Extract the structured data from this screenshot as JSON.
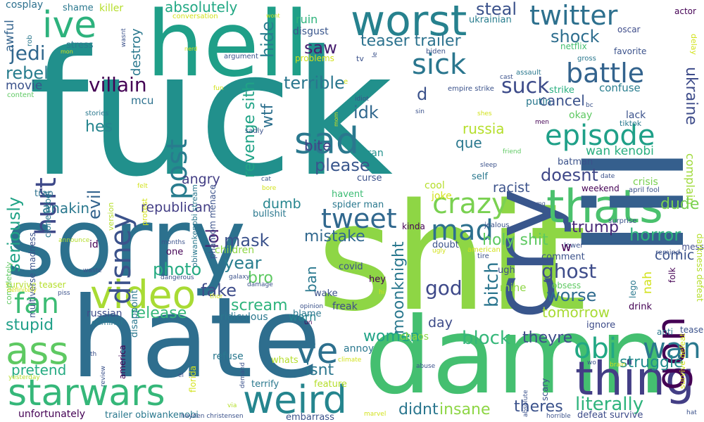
{
  "words": [
    {
      "text": "fuck",
      "color": "#21908c"
    },
    {
      "text": "shit",
      "color": "#8ed645"
    },
    {
      "text": "sorry",
      "color": "#2c718e"
    },
    {
      "text": "hate",
      "color": "#2e6e8e"
    },
    {
      "text": "damn",
      "color": "#44bf70"
    },
    {
      "text": "hell",
      "color": "#1f9f88"
    },
    {
      "text": "cry",
      "color": "#39568c"
    },
    {
      "text": "worst",
      "color": "#26818e"
    },
    {
      "text": "thats",
      "color": "#4ac16d"
    },
    {
      "text": "thing",
      "color": "#433e85"
    },
    {
      "text": "lil",
      "color": "#355f8d"
    },
    {
      "text": "ive",
      "color": "#2db27d"
    },
    {
      "text": "gon",
      "color": "#440154"
    },
    {
      "text": "sad",
      "color": "#2a788e"
    },
    {
      "text": "video",
      "color": "#a8db34"
    },
    {
      "text": "starwars",
      "color": "#35b779"
    },
    {
      "text": "weird",
      "color": "#25858e"
    },
    {
      "text": "ass",
      "color": "#5ec962"
    },
    {
      "text": "ve",
      "color": "#2d708e"
    },
    {
      "text": "obi",
      "color": "#22a884"
    },
    {
      "text": "wan",
      "color": "#2a788e"
    },
    {
      "text": "episode",
      "color": "#1fa088"
    },
    {
      "text": "twitter",
      "color": "#2d708e"
    },
    {
      "text": "battle",
      "color": "#33638d"
    },
    {
      "text": "sick",
      "color": "#2a768e"
    },
    {
      "text": "crazy",
      "color": "#7ad151"
    },
    {
      "text": "tweet",
      "color": "#31688e"
    },
    {
      "text": "mad",
      "color": "#2d708e"
    },
    {
      "text": "disney",
      "color": "#3b528b"
    },
    {
      "text": "post",
      "color": "#287c8e"
    },
    {
      "text": "hurt",
      "color": "#3e4989"
    },
    {
      "text": "fan",
      "color": "#3dbc74"
    },
    {
      "text": "suck",
      "color": "#3e4c8a"
    },
    {
      "text": "villain",
      "color": "#440154"
    },
    {
      "text": "jedi",
      "color": "#31688e"
    },
    {
      "text": "rebel",
      "color": "#287d8e"
    },
    {
      "text": "shock",
      "color": "#2e6e8e"
    },
    {
      "text": "steal",
      "color": "#3b528b"
    },
    {
      "text": "absolutely",
      "color": "#22a884"
    },
    {
      "text": "teaser trailer",
      "color": "#2c728e"
    },
    {
      "text": "saw",
      "color": "#481f70"
    },
    {
      "text": "terrible",
      "color": "#2a768e"
    },
    {
      "text": "hide",
      "color": "#287d8e"
    },
    {
      "text": "wtf",
      "color": "#2d708e"
    },
    {
      "text": "revenge sith",
      "color": "#20a386"
    },
    {
      "text": "idk",
      "color": "#31688e"
    },
    {
      "text": "bite",
      "color": "#414487"
    },
    {
      "text": "please",
      "color": "#39568c"
    },
    {
      "text": "russia",
      "color": "#b5de2b"
    },
    {
      "text": "que",
      "color": "#2a788e"
    },
    {
      "text": "d",
      "color": "#3b528b"
    },
    {
      "text": "cancel",
      "color": "#3b528b"
    },
    {
      "text": "ukraine",
      "color": "#3e4c8a"
    },
    {
      "text": "doesnt",
      "color": "#3f4788"
    },
    {
      "text": "wan kenobi",
      "color": "#29af7f"
    },
    {
      "text": "complain",
      "color": "#9fda3a"
    },
    {
      "text": "horror",
      "color": "#2db27d"
    },
    {
      "text": "mistake",
      "color": "#31688e"
    },
    {
      "text": "mask",
      "color": "#3b528b"
    },
    {
      "text": "lol",
      "color": "#481f70"
    },
    {
      "text": "year",
      "color": "#287d8e"
    },
    {
      "text": "photo",
      "color": "#25ab82"
    },
    {
      "text": "fake",
      "color": "#3e4c8a"
    },
    {
      "text": "scream",
      "color": "#2eb37c"
    },
    {
      "text": "release",
      "color": "#35b779"
    },
    {
      "text": "ghost",
      "color": "#3e4c8a"
    },
    {
      "text": "worse",
      "color": "#2f6b8e"
    },
    {
      "text": "god",
      "color": "#3e4989"
    },
    {
      "text": "bitch",
      "color": "#2b758e"
    },
    {
      "text": "block",
      "color": "#35b779"
    },
    {
      "text": "women",
      "color": "#20a386"
    },
    {
      "text": "theyre",
      "color": "#3e4c8a"
    },
    {
      "text": "literally",
      "color": "#2eb37c"
    },
    {
      "text": "struggle",
      "color": "#228c8d"
    },
    {
      "text": "theres",
      "color": "#3b528b"
    },
    {
      "text": "insane",
      "color": "#8ed645"
    },
    {
      "text": "didnt",
      "color": "#2a768e"
    },
    {
      "text": "isnt",
      "color": "#2a768e"
    },
    {
      "text": "stupid",
      "color": "#1f9f88"
    },
    {
      "text": "pretend",
      "color": "#25ab82"
    },
    {
      "text": "anakin",
      "color": "#2a788e"
    },
    {
      "text": "seriously",
      "color": "#20a386"
    },
    {
      "text": "evil",
      "color": "#33638d"
    },
    {
      "text": "hes",
      "color": "#25858e"
    },
    {
      "text": "republican",
      "color": "#433e85"
    },
    {
      "text": "angry",
      "color": "#433e85"
    },
    {
      "text": "dumb",
      "color": "#25858e"
    },
    {
      "text": "trump",
      "color": "#482878"
    },
    {
      "text": "holy shit",
      "color": "#5ec962"
    },
    {
      "text": "dude",
      "color": "#7ad151"
    },
    {
      "text": "comic",
      "color": "#3b528b"
    },
    {
      "text": "racist",
      "color": "#3b528b"
    },
    {
      "text": "moonknight",
      "color": "#2a788e"
    },
    {
      "text": "ban",
      "color": "#2a788e"
    },
    {
      "text": "nah",
      "color": "#d2e21b"
    },
    {
      "text": "mine",
      "color": "#8ed645"
    },
    {
      "text": "tomorrow",
      "color": "#a8db34"
    },
    {
      "text": "day",
      "color": "#3e4c8a"
    },
    {
      "text": "warn",
      "color": "#25858e"
    },
    {
      "text": "bro",
      "color": "#5ec962"
    },
    {
      "text": "movie",
      "color": "#3b528b"
    },
    {
      "text": "destroy",
      "color": "#2a788e"
    },
    {
      "text": "mcu",
      "color": "#2c718e"
    },
    {
      "text": "awful",
      "color": "#33638d"
    },
    {
      "text": "cosplay",
      "color": "#2d708e"
    },
    {
      "text": "shame",
      "color": "#2a788e"
    },
    {
      "text": "killer",
      "color": "#b5de2b"
    },
    {
      "text": "stress",
      "color": "#2a788e"
    },
    {
      "text": "ruin",
      "color": "#2eb37c"
    },
    {
      "text": "disgust",
      "color": "#39568c"
    },
    {
      "text": "problems",
      "color": "#d2e21b"
    },
    {
      "text": "ukrainian",
      "color": "#287d8e"
    },
    {
      "text": "oscar",
      "color": "#3e4c8a"
    },
    {
      "text": "actor",
      "color": "#440154"
    },
    {
      "text": "netflix",
      "color": "#44bf70"
    },
    {
      "text": "favorite",
      "color": "#3b528b"
    },
    {
      "text": "confuse",
      "color": "#287d8e"
    },
    {
      "text": "strike",
      "color": "#29af7f"
    },
    {
      "text": "okay",
      "color": "#5ec962"
    },
    {
      "text": "putin",
      "color": "#2a788e"
    },
    {
      "text": "lack",
      "color": "#3b528b"
    },
    {
      "text": "tiktok",
      "color": "#2a788e"
    },
    {
      "text": "crisis",
      "color": "#7ad151"
    },
    {
      "text": "weekend",
      "color": "#440154"
    },
    {
      "text": "batman",
      "color": "#3b528b"
    },
    {
      "text": "self",
      "color": "#2a788e"
    },
    {
      "text": "cool",
      "color": "#b5de2b"
    },
    {
      "text": "joke",
      "color": "#d2e21b"
    },
    {
      "text": "kinda",
      "color": "#440154"
    },
    {
      "text": "havent",
      "color": "#3dbc74"
    },
    {
      "text": "spider man",
      "color": "#2a788e"
    },
    {
      "text": "bullshit",
      "color": "#2a788e"
    },
    {
      "text": "curse",
      "color": "#3b528b"
    },
    {
      "text": "tran",
      "color": "#21908c"
    },
    {
      "text": "trap",
      "color": "#2d708e"
    },
    {
      "text": "id",
      "color": "#440154"
    },
    {
      "text": "children",
      "color": "#8ed645"
    },
    {
      "text": "one",
      "color": "#440154"
    },
    {
      "text": "doubt",
      "color": "#3b528b"
    },
    {
      "text": "ugh",
      "color": "#3e4c8a"
    },
    {
      "text": "comment",
      "color": "#3b528b"
    },
    {
      "text": "obsess",
      "color": "#5ec962"
    },
    {
      "text": "drink",
      "color": "#440154"
    },
    {
      "text": "ignore",
      "color": "#3e4c8a"
    },
    {
      "text": "lego",
      "color": "#2a788e"
    },
    {
      "text": "folk",
      "color": "#440154"
    },
    {
      "text": "anti",
      "color": "#2a788e"
    },
    {
      "text": "tease",
      "color": "#3b528b"
    },
    {
      "text": "mess",
      "color": "#3e4c8a"
    },
    {
      "text": "darkness defeat",
      "color": "#b5de2b"
    },
    {
      "text": "survive defeat",
      "color": "#d2e21b"
    },
    {
      "text": "covid",
      "color": "#3b528b"
    },
    {
      "text": "hey",
      "color": "#440154"
    },
    {
      "text": "wake",
      "color": "#3b528b"
    },
    {
      "text": "freak",
      "color": "#3e4c8a"
    },
    {
      "text": "blame",
      "color": "#2a788e"
    },
    {
      "text": "chaos",
      "color": "#8ed645"
    },
    {
      "text": "annoy",
      "color": "#2a788e"
    },
    {
      "text": "refuse",
      "color": "#2a788e"
    },
    {
      "text": "whats",
      "color": "#b5de2b"
    },
    {
      "text": "feature",
      "color": "#b5de2b"
    },
    {
      "text": "terrify",
      "color": "#2a788e"
    },
    {
      "text": "embarrass",
      "color": "#3b528b"
    },
    {
      "text": "ridiculous",
      "color": "#2a788e"
    },
    {
      "text": "survive teaser",
      "color": "#b5de2b"
    },
    {
      "text": "russian",
      "color": "#3e4c8a"
    },
    {
      "text": "criminal",
      "color": "#2a788e"
    },
    {
      "text": "america",
      "color": "#440154"
    },
    {
      "text": "unfortunately",
      "color": "#440154"
    },
    {
      "text": "trailer obiwankenobi",
      "color": "#2a788e"
    },
    {
      "text": "florida",
      "color": "#d2e21b"
    },
    {
      "text": "scary",
      "color": "#3b528b"
    },
    {
      "text": "defeat survive",
      "color": "#3e4c8a"
    },
    {
      "text": "multiverse madness",
      "color": "#3b528b"
    },
    {
      "text": "clone rebel",
      "color": "#2a788e"
    },
    {
      "text": "phantom menace",
      "color": "#3b528b"
    },
    {
      "text": "obiwankenobi stream",
      "color": "#2a788e"
    },
    {
      "text": "disappoint",
      "color": "#2a788e"
    },
    {
      "text": "protest",
      "color": "#d2e21b"
    },
    {
      "text": "version",
      "color": "#b5de2b"
    },
    {
      "text": "completely",
      "color": "#5ec962"
    },
    {
      "text": "content",
      "color": "#5ec962"
    },
    {
      "text": "stories",
      "color": "#2a788e"
    },
    {
      "text": "sadly",
      "color": "#3b528b"
    },
    {
      "text": "argument",
      "color": "#3b528b"
    },
    {
      "text": "conversation",
      "color": "#d2e21b"
    },
    {
      "text": "wasnt",
      "color": "#3b528b"
    },
    {
      "text": "rob",
      "color": "#2a788e"
    },
    {
      "text": "delay",
      "color": "#d2e21b"
    },
    {
      "text": "gross",
      "color": "#2a788e"
    },
    {
      "text": "biden",
      "color": "#3b528b"
    },
    {
      "text": "assault",
      "color": "#2a788e"
    },
    {
      "text": "empire strike",
      "color": "#3b528b"
    },
    {
      "text": "idiot",
      "color": "#3b528b"
    },
    {
      "text": "jealous",
      "color": "#3b528b"
    },
    {
      "text": "american",
      "color": "#d2e21b"
    },
    {
      "text": "tire",
      "color": "#3b528b"
    },
    {
      "text": "lower",
      "color": "#3b528b"
    },
    {
      "text": "remind",
      "color": "#3b528b"
    },
    {
      "text": "surprise",
      "color": "#3b528b"
    },
    {
      "text": "april fool",
      "color": "#3b528b"
    },
    {
      "text": "date",
      "color": "#3b528b"
    },
    {
      "text": "friend",
      "color": "#5ec962"
    },
    {
      "text": "sleep",
      "color": "#3b528b"
    },
    {
      "text": "men",
      "color": "#440154"
    },
    {
      "text": "cast",
      "color": "#3b528b"
    },
    {
      "text": "shes",
      "color": "#d2e21b"
    },
    {
      "text": "fun",
      "color": "#d2e21b"
    },
    {
      "text": "sin",
      "color": "#3b528b"
    },
    {
      "text": "le",
      "color": "#3b528b"
    },
    {
      "text": "tv",
      "color": "#3b528b"
    },
    {
      "text": "bc",
      "color": "#3b528b"
    },
    {
      "text": "months",
      "color": "#3b528b"
    },
    {
      "text": "announce",
      "color": "#b5de2b"
    },
    {
      "text": "waste",
      "color": "#3b528b"
    },
    {
      "text": "piss",
      "color": "#3b528b"
    },
    {
      "text": "galaxy",
      "color": "#3b528b"
    },
    {
      "text": "dangerous",
      "color": "#3b528b"
    },
    {
      "text": "damage",
      "color": "#3b528b"
    },
    {
      "text": "thor",
      "color": "#d2e21b"
    },
    {
      "text": "opinion",
      "color": "#3b528b"
    },
    {
      "text": "hi",
      "color": "#d2e21b"
    },
    {
      "text": "definitely",
      "color": "#d2e21b"
    },
    {
      "text": "yesterday",
      "color": "#b5de2b"
    },
    {
      "text": "review",
      "color": "#3b528b"
    },
    {
      "text": "th",
      "color": "#3b528b"
    },
    {
      "text": "el",
      "color": "#3b528b"
    },
    {
      "text": "via",
      "color": "#b5de2b"
    },
    {
      "text": "demand",
      "color": "#3b528b"
    },
    {
      "text": "climate",
      "color": "#d2e21b"
    },
    {
      "text": "abuse",
      "color": "#3b528b"
    },
    {
      "text": "absolute",
      "color": "#3b528b"
    },
    {
      "text": "wo",
      "color": "#3b528b"
    },
    {
      "text": "brain",
      "color": "#d2e21b"
    },
    {
      "text": "marvel",
      "color": "#d2e21b"
    },
    {
      "text": "hayden christensen",
      "color": "#3b528b"
    },
    {
      "text": "horrible",
      "color": "#3b528b"
    },
    {
      "text": "hat",
      "color": "#3b528b"
    },
    {
      "text": "omg",
      "color": "#3b528b"
    },
    {
      "text": "felt",
      "color": "#d2e21b"
    },
    {
      "text": "bore",
      "color": "#d2e21b"
    },
    {
      "text": "cat",
      "color": "#3b528b"
    },
    {
      "text": "ugly",
      "color": "#d2e21b"
    },
    {
      "text": "nerd",
      "color": "#d2e21b"
    },
    {
      "text": "wont",
      "color": "#d2e21b"
    },
    {
      "text": "mon",
      "color": "#d2e21b"
    },
    {
      "text": "un",
      "color": "#440154"
    },
    {
      "text": "e",
      "color": "#d2e21b"
    },
    {
      "text": "mom",
      "color": "#d2e21b"
    },
    {
      "text": "w",
      "color": "#440154"
    }
  ]
}
